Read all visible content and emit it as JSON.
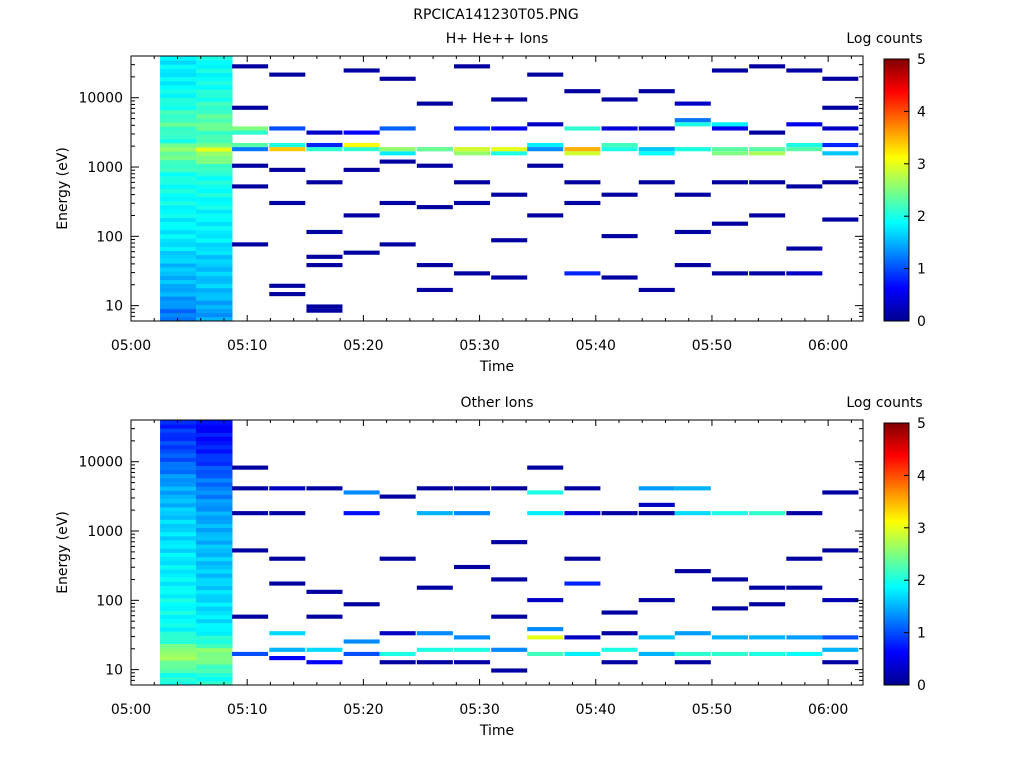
{
  "figure_title": "RPCICA141230T05.PNG",
  "colormap": [
    "#00008f",
    "#0000ff",
    "#0080ff",
    "#00ffff",
    "#80ff80",
    "#ffff00",
    "#ff8000",
    "#ff0000",
    "#800000"
  ],
  "chart_data": [
    {
      "type": "heatmap",
      "title": "H+ He++ Ions",
      "xlabel": "Time",
      "ylabel": "Energy (eV)",
      "colorbar_label": "Log counts",
      "colorbar_ticks": [
        "0",
        "1",
        "2",
        "3",
        "4",
        "5"
      ],
      "clim": [
        0,
        5
      ],
      "x_ticks": [
        "05:00",
        "05:10",
        "05:20",
        "05:30",
        "05:40",
        "05:50",
        "06:00"
      ],
      "xlim_min": [
        0,
        63
      ],
      "y_ticks": [
        "10",
        "100",
        "1000",
        "10000"
      ],
      "y_scale": "log",
      "ylim_eV": [
        6,
        40000
      ],
      "time_bins_min": [
        2.5,
        5.6,
        8.7,
        11.9,
        15.1,
        18.3,
        21.4,
        24.6,
        27.8,
        31.0,
        34.1,
        37.3,
        40.5,
        43.7,
        46.8,
        50.0,
        53.2,
        56.4,
        59.5
      ],
      "survey_bins": [
        0,
        1
      ],
      "survey_profiles": [
        [
          [
            8,
            1.2
          ],
          [
            12,
            1.4
          ],
          [
            20,
            1.5
          ],
          [
            40,
            1.6
          ],
          [
            100,
            1.8
          ],
          [
            300,
            1.9
          ],
          [
            800,
            2.0
          ],
          [
            1500,
            2.4
          ],
          [
            1800,
            2.6
          ],
          [
            2500,
            2.0
          ],
          [
            4000,
            2.3
          ],
          [
            8000,
            2.0
          ],
          [
            20000,
            1.8
          ],
          [
            40000,
            1.8
          ]
        ],
        [
          [
            8,
            1.4
          ],
          [
            12,
            1.5
          ],
          [
            20,
            1.6
          ],
          [
            40,
            1.6
          ],
          [
            100,
            1.8
          ],
          [
            300,
            1.9
          ],
          [
            800,
            2.0
          ],
          [
            1500,
            2.6
          ],
          [
            1800,
            2.9
          ],
          [
            2500,
            2.1
          ],
          [
            4000,
            2.4
          ],
          [
            8000,
            2.1
          ],
          [
            20000,
            1.9
          ],
          [
            40000,
            1.9
          ]
        ]
      ],
      "cells": [
        [
          2,
          1700,
          1.2
        ],
        [
          2,
          2100,
          2.3
        ],
        [
          2,
          3600,
          2.5
        ],
        [
          2,
          3300,
          2.1
        ],
        [
          2,
          28000,
          0.1
        ],
        [
          2,
          80,
          0.1
        ],
        [
          2,
          1000,
          0.1
        ],
        [
          2,
          500,
          0.1
        ],
        [
          2,
          7000,
          0.1
        ],
        [
          3,
          1800,
          3.4
        ],
        [
          3,
          2100,
          2.0
        ],
        [
          3,
          3500,
          1.0
        ],
        [
          3,
          22000,
          0.1
        ],
        [
          3,
          20,
          0.1
        ],
        [
          3,
          15,
          0.1
        ],
        [
          3,
          900,
          0.1
        ],
        [
          3,
          300,
          0.1
        ],
        [
          4,
          1800,
          2.1
        ],
        [
          4,
          2000,
          0.8
        ],
        [
          4,
          3200,
          0.3
        ],
        [
          4,
          10,
          0.1
        ],
        [
          4,
          9,
          0.1
        ],
        [
          4,
          120,
          0.1
        ],
        [
          4,
          600,
          0.1
        ],
        [
          4,
          50,
          0.1
        ],
        [
          4,
          40,
          0.1
        ],
        [
          5,
          1700,
          2.1
        ],
        [
          5,
          2000,
          3.1
        ],
        [
          5,
          3300,
          0.6
        ],
        [
          5,
          25000,
          0.1
        ],
        [
          5,
          900,
          0.1
        ],
        [
          5,
          60,
          0.1
        ],
        [
          5,
          200,
          0.1
        ],
        [
          6,
          1600,
          1.8
        ],
        [
          6,
          1900,
          2.6
        ],
        [
          6,
          3700,
          1.1
        ],
        [
          6,
          1200,
          0.1
        ],
        [
          6,
          80,
          0.1
        ],
        [
          6,
          300,
          0.1
        ],
        [
          6,
          20000,
          0.1
        ],
        [
          7,
          1700,
          1.7
        ],
        [
          7,
          1900,
          2.4
        ],
        [
          7,
          1100,
          0.1
        ],
        [
          7,
          40,
          0.1
        ],
        [
          7,
          18,
          0.1
        ],
        [
          7,
          250,
          0.1
        ],
        [
          7,
          8000,
          0.1
        ],
        [
          8,
          1500,
          2.6
        ],
        [
          8,
          1800,
          2.9
        ],
        [
          8,
          3600,
          0.8
        ],
        [
          8,
          30,
          0.1
        ],
        [
          8,
          300,
          0.1
        ],
        [
          8,
          600,
          0.1
        ],
        [
          8,
          30000,
          0.1
        ],
        [
          9,
          1600,
          2.0
        ],
        [
          9,
          1900,
          3.0
        ],
        [
          9,
          3500,
          0.6
        ],
        [
          9,
          25,
          0.1
        ],
        [
          9,
          90,
          0.1
        ],
        [
          9,
          400,
          0.1
        ],
        [
          9,
          9000,
          0.1
        ],
        [
          10,
          1700,
          1.3
        ],
        [
          10,
          2000,
          1.8
        ],
        [
          10,
          4000,
          0.3
        ],
        [
          10,
          22000,
          0.1
        ],
        [
          10,
          200,
          0.1
        ],
        [
          10,
          1000,
          0.1
        ],
        [
          11,
          1600,
          2.9
        ],
        [
          11,
          1900,
          3.5
        ],
        [
          11,
          3800,
          2.1
        ],
        [
          11,
          30,
          0.8
        ],
        [
          11,
          600,
          0.1
        ],
        [
          11,
          13000,
          0.1
        ],
        [
          11,
          300,
          0.1
        ],
        [
          12,
          1700,
          2.0
        ],
        [
          12,
          2000,
          2.2
        ],
        [
          12,
          3700,
          0.4
        ],
        [
          12,
          25,
          0.1
        ],
        [
          12,
          100,
          0.1
        ],
        [
          12,
          9000,
          0.1
        ],
        [
          12,
          400,
          0.1
        ],
        [
          13,
          1600,
          1.9
        ],
        [
          13,
          1900,
          1.6
        ],
        [
          13,
          3800,
          0.3
        ],
        [
          13,
          18,
          0.1
        ],
        [
          13,
          600,
          0.1
        ],
        [
          13,
          12000,
          0.1
        ],
        [
          14,
          1700,
          2.4
        ],
        [
          14,
          1900,
          2.0
        ],
        [
          14,
          4100,
          2.0
        ],
        [
          14,
          4500,
          1.2
        ],
        [
          14,
          40,
          0.1
        ],
        [
          14,
          120,
          0.1
        ],
        [
          14,
          400,
          0.1
        ],
        [
          14,
          8000,
          0.3
        ],
        [
          15,
          1600,
          2.5
        ],
        [
          15,
          1800,
          2.3
        ],
        [
          15,
          4000,
          1.8
        ],
        [
          15,
          3500,
          0.5
        ],
        [
          15,
          30,
          0.1
        ],
        [
          15,
          150,
          0.1
        ],
        [
          15,
          600,
          0.1
        ],
        [
          15,
          25000,
          0.1
        ],
        [
          16,
          1600,
          2.7
        ],
        [
          16,
          1900,
          2.3
        ],
        [
          16,
          3200,
          0.1
        ],
        [
          16,
          30,
          0.1
        ],
        [
          16,
          200,
          0.1
        ],
        [
          16,
          600,
          0.1
        ],
        [
          16,
          30000,
          0.1
        ],
        [
          17,
          1700,
          2.3
        ],
        [
          17,
          2200,
          2.0
        ],
        [
          17,
          4000,
          0.5
        ],
        [
          17,
          30,
          0.3
        ],
        [
          17,
          65,
          0.1
        ],
        [
          17,
          500,
          0.1
        ],
        [
          17,
          25000,
          0.1
        ],
        [
          18,
          1600,
          1.6
        ],
        [
          18,
          2000,
          0.8
        ],
        [
          18,
          3500,
          0.3
        ],
        [
          18,
          180,
          0.1
        ],
        [
          18,
          600,
          0.1
        ],
        [
          18,
          7000,
          0.1
        ],
        [
          18,
          20000,
          0.1
        ]
      ]
    },
    {
      "type": "heatmap",
      "title": "Other Ions",
      "xlabel": "Time",
      "ylabel": "Energy (eV)",
      "colorbar_label": "Log counts",
      "colorbar_ticks": [
        "0",
        "1",
        "2",
        "3",
        "4",
        "5"
      ],
      "clim": [
        0,
        5
      ],
      "x_ticks": [
        "05:00",
        "05:10",
        "05:20",
        "05:30",
        "05:40",
        "05:50",
        "06:00"
      ],
      "xlim_min": [
        0,
        63
      ],
      "y_ticks": [
        "10",
        "100",
        "1000",
        "10000"
      ],
      "y_scale": "log",
      "ylim_eV": [
        6,
        40000
      ],
      "time_bins_min": [
        2.5,
        5.6,
        8.7,
        11.9,
        15.1,
        18.3,
        21.4,
        24.6,
        27.8,
        31.0,
        34.1,
        37.3,
        40.5,
        43.7,
        46.8,
        50.0,
        53.2,
        56.4,
        59.5
      ],
      "survey_bins": [
        0,
        1
      ],
      "survey_profiles": [
        [
          [
            8,
            2.0
          ],
          [
            13,
            2.5
          ],
          [
            18,
            2.7
          ],
          [
            24,
            2.2
          ],
          [
            40,
            1.9
          ],
          [
            100,
            1.9
          ],
          [
            300,
            1.8
          ],
          [
            1000,
            1.7
          ],
          [
            2000,
            1.6
          ],
          [
            5000,
            1.4
          ],
          [
            10000,
            1.1
          ],
          [
            20000,
            0.9
          ],
          [
            40000,
            0.8
          ]
        ],
        [
          [
            8,
            2.0
          ],
          [
            13,
            2.4
          ],
          [
            18,
            2.6
          ],
          [
            24,
            2.1
          ],
          [
            40,
            1.8
          ],
          [
            100,
            1.7
          ],
          [
            300,
            1.6
          ],
          [
            1000,
            1.5
          ],
          [
            2000,
            1.4
          ],
          [
            5000,
            1.2
          ],
          [
            10000,
            0.9
          ],
          [
            20000,
            0.7
          ],
          [
            40000,
            0.6
          ]
        ]
      ],
      "cells": [
        [
          2,
          18,
          1.0
        ],
        [
          2,
          55,
          0.1
        ],
        [
          2,
          1700,
          0.1
        ],
        [
          2,
          4000,
          0.1
        ],
        [
          2,
          8000,
          0.1
        ],
        [
          2,
          500,
          0.1
        ],
        [
          3,
          15,
          0.6
        ],
        [
          3,
          20,
          1.5
        ],
        [
          3,
          35,
          1.7
        ],
        [
          3,
          1800,
          0.1
        ],
        [
          3,
          4200,
          0.3
        ],
        [
          3,
          180,
          0.1
        ],
        [
          3,
          400,
          0.1
        ],
        [
          4,
          13,
          0.6
        ],
        [
          4,
          20,
          1.7
        ],
        [
          4,
          60,
          0.1
        ],
        [
          4,
          4000,
          0.1
        ],
        [
          4,
          130,
          0.1
        ],
        [
          5,
          18,
          1.0
        ],
        [
          5,
          25,
          1.3
        ],
        [
          5,
          1800,
          0.7
        ],
        [
          5,
          3800,
          1.3
        ],
        [
          5,
          90,
          0.1
        ],
        [
          6,
          13,
          0.1
        ],
        [
          6,
          18,
          2.0
        ],
        [
          6,
          35,
          0.3
        ],
        [
          6,
          3300,
          0.1
        ],
        [
          6,
          400,
          0.1
        ],
        [
          7,
          13,
          0.1
        ],
        [
          7,
          20,
          2.0
        ],
        [
          7,
          35,
          1.3
        ],
        [
          7,
          1700,
          1.5
        ],
        [
          7,
          4000,
          0.1
        ],
        [
          7,
          150,
          0.1
        ],
        [
          8,
          13,
          0.1
        ],
        [
          8,
          20,
          2.0
        ],
        [
          8,
          30,
          1.3
        ],
        [
          8,
          1800,
          1.3
        ],
        [
          8,
          4000,
          0.1
        ],
        [
          8,
          300,
          0.1
        ],
        [
          9,
          10,
          0.1
        ],
        [
          9,
          20,
          1.3
        ],
        [
          9,
          60,
          0.1
        ],
        [
          9,
          4000,
          0.1
        ],
        [
          9,
          700,
          0.1
        ],
        [
          9,
          200,
          0.1
        ],
        [
          10,
          18,
          2.2
        ],
        [
          10,
          30,
          3.0
        ],
        [
          10,
          40,
          1.3
        ],
        [
          10,
          1800,
          1.8
        ],
        [
          10,
          3800,
          2.0
        ],
        [
          10,
          8000,
          0.1
        ],
        [
          10,
          100,
          0.3
        ],
        [
          11,
          18,
          1.8
        ],
        [
          11,
          30,
          0.3
        ],
        [
          11,
          1700,
          0.4
        ],
        [
          11,
          4000,
          0.1
        ],
        [
          11,
          170,
          0.8
        ],
        [
          11,
          400,
          0.1
        ],
        [
          12,
          13,
          0.1
        ],
        [
          12,
          20,
          2.0
        ],
        [
          12,
          35,
          0.1
        ],
        [
          12,
          1700,
          0.1
        ],
        [
          12,
          70,
          0.1
        ],
        [
          13,
          18,
          1.5
        ],
        [
          13,
          30,
          1.6
        ],
        [
          13,
          1800,
          0.1
        ],
        [
          13,
          4000,
          1.4
        ],
        [
          13,
          2500,
          0.3
        ],
        [
          13,
          100,
          0.1
        ],
        [
          14,
          13,
          0.1
        ],
        [
          14,
          18,
          2.1
        ],
        [
          14,
          35,
          1.4
        ],
        [
          14,
          1700,
          1.7
        ],
        [
          14,
          4200,
          1.5
        ],
        [
          14,
          250,
          0.1
        ],
        [
          15,
          18,
          2.1
        ],
        [
          15,
          30,
          1.5
        ],
        [
          15,
          1700,
          2.0
        ],
        [
          15,
          200,
          0.1
        ],
        [
          15,
          80,
          0.1
        ],
        [
          16,
          18,
          2.0
        ],
        [
          16,
          30,
          1.5
        ],
        [
          16,
          1700,
          2.1
        ],
        [
          16,
          150,
          0.1
        ],
        [
          16,
          90,
          0.1
        ],
        [
          17,
          18,
          1.9
        ],
        [
          17,
          30,
          1.4
        ],
        [
          17,
          1800,
          0.1
        ],
        [
          17,
          160,
          0.1
        ],
        [
          17,
          400,
          0.1
        ],
        [
          18,
          13,
          0.1
        ],
        [
          18,
          20,
          1.5
        ],
        [
          18,
          30,
          1.0
        ],
        [
          18,
          100,
          0.2
        ],
        [
          18,
          550,
          0.1
        ],
        [
          18,
          3500,
          0.1
        ]
      ]
    }
  ]
}
